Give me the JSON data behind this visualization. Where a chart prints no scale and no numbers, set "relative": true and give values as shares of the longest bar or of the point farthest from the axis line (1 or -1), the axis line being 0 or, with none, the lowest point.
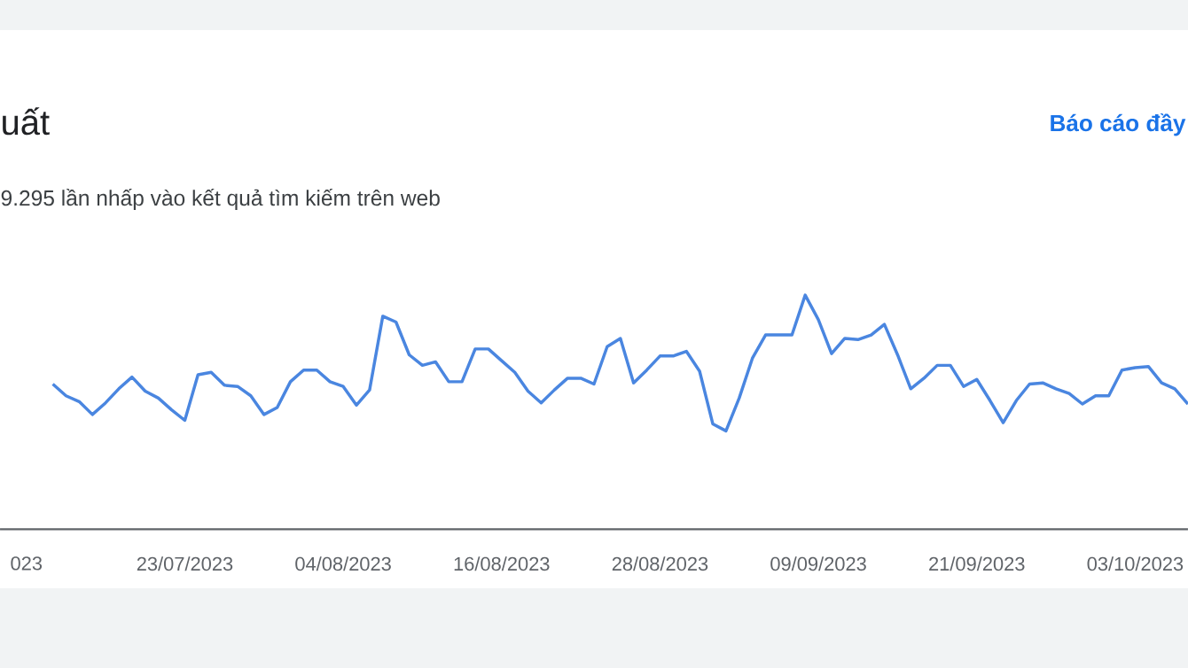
{
  "chart_data": {
    "type": "line",
    "title": "uất",
    "subtitle": "9.295 lần nhấp vào kết quả tìm kiếm trên web",
    "annotations": [
      "Báo cáo đầy"
    ],
    "relative": true,
    "marker": "none",
    "xlim": [
      "2023-07-09",
      "2023-10-07"
    ],
    "xticks": [
      {
        "value": "2023-07-11",
        "label": "023"
      },
      {
        "value": "2023-07-23",
        "label": "23/07/2023"
      },
      {
        "value": "2023-08-04",
        "label": "04/08/2023"
      },
      {
        "value": "2023-08-16",
        "label": "16/08/2023"
      },
      {
        "value": "2023-08-28",
        "label": "28/08/2023"
      },
      {
        "value": "2023-09-09",
        "label": "09/09/2023"
      },
      {
        "value": "2023-09-21",
        "label": "21/09/2023"
      },
      {
        "value": "2023-10-03",
        "label": "03/10/2023"
      }
    ],
    "x": [
      "2023-07-13",
      "2023-07-14",
      "2023-07-15",
      "2023-07-16",
      "2023-07-17",
      "2023-07-18",
      "2023-07-19",
      "2023-07-20",
      "2023-07-21",
      "2023-07-22",
      "2023-07-23",
      "2023-07-24",
      "2023-07-25",
      "2023-07-26",
      "2023-07-27",
      "2023-07-28",
      "2023-07-29",
      "2023-07-30",
      "2023-07-31",
      "2023-08-01",
      "2023-08-02",
      "2023-08-03",
      "2023-08-04",
      "2023-08-05",
      "2023-08-06",
      "2023-08-07",
      "2023-08-08",
      "2023-08-09",
      "2023-08-10",
      "2023-08-11",
      "2023-08-12",
      "2023-08-13",
      "2023-08-14",
      "2023-08-15",
      "2023-08-16",
      "2023-08-17",
      "2023-08-18",
      "2023-08-19",
      "2023-08-20",
      "2023-08-21",
      "2023-08-22",
      "2023-08-23",
      "2023-08-24",
      "2023-08-25",
      "2023-08-26",
      "2023-08-27",
      "2023-08-28",
      "2023-08-29",
      "2023-08-30",
      "2023-08-31",
      "2023-09-01",
      "2023-09-02",
      "2023-09-03",
      "2023-09-04",
      "2023-09-05",
      "2023-09-06",
      "2023-09-07",
      "2023-09-08",
      "2023-09-09",
      "2023-09-10",
      "2023-09-11",
      "2023-09-12",
      "2023-09-13",
      "2023-09-14",
      "2023-09-15",
      "2023-09-16",
      "2023-09-17",
      "2023-09-18",
      "2023-09-19",
      "2023-09-20",
      "2023-09-21",
      "2023-09-22",
      "2023-09-23",
      "2023-09-24",
      "2023-09-25",
      "2023-09-26",
      "2023-09-27",
      "2023-09-28",
      "2023-09-29",
      "2023-09-30",
      "2023-10-01",
      "2023-10-02",
      "2023-10-03",
      "2023-10-04",
      "2023-10-05",
      "2023-10-06",
      "2023-10-07"
    ],
    "series": [
      {
        "color": "#4a86e0",
        "values": [
          0.62,
          0.57,
          0.545,
          0.49,
          0.54,
          0.6,
          0.65,
          0.59,
          0.56,
          0.51,
          0.465,
          0.66,
          0.67,
          0.615,
          0.61,
          0.57,
          0.49,
          0.52,
          0.63,
          0.68,
          0.68,
          0.63,
          0.61,
          0.53,
          0.595,
          0.91,
          0.885,
          0.745,
          0.7,
          0.715,
          0.63,
          0.63,
          0.77,
          0.77,
          0.72,
          0.67,
          0.59,
          0.54,
          0.595,
          0.645,
          0.645,
          0.62,
          0.78,
          0.815,
          0.625,
          0.68,
          0.74,
          0.74,
          0.76,
          0.675,
          0.45,
          0.42,
          0.56,
          0.73,
          0.83,
          0.83,
          0.83,
          1.0,
          0.895,
          0.75,
          0.815,
          0.81,
          0.83,
          0.875,
          0.745,
          0.6,
          0.645,
          0.7,
          0.7,
          0.61,
          0.64,
          0.55,
          0.455,
          0.55,
          0.62,
          0.625,
          0.6,
          0.58,
          0.535,
          0.57,
          0.57,
          0.68,
          0.69,
          0.695,
          0.625,
          0.6,
          0.535
        ]
      }
    ]
  }
}
